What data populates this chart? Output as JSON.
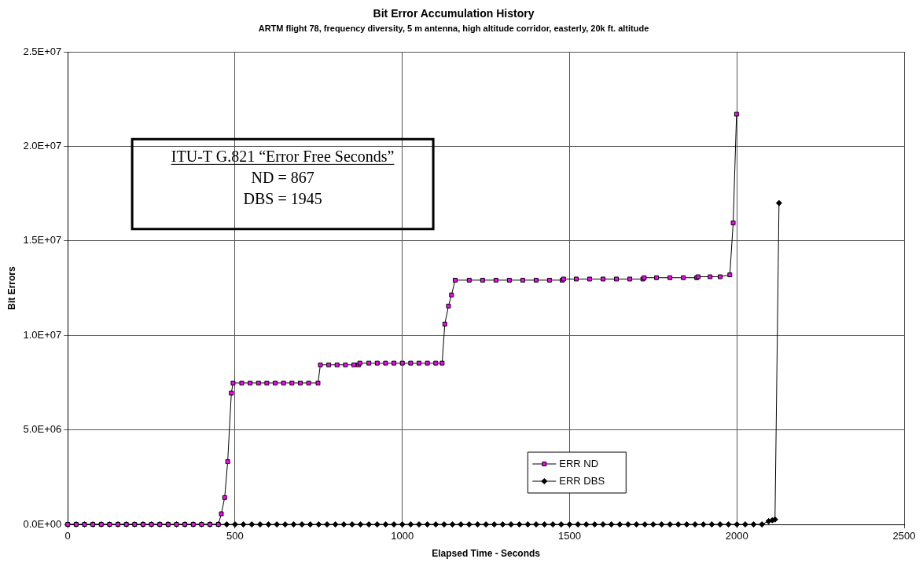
{
  "chart_data": {
    "type": "line",
    "title": "Bit Error Accumulation History",
    "subtitle": "ARTM flight 78, frequency diversity, 5 m antenna, high altitude corridor, easterly, 20k ft. altitude",
    "xlabel": "Elapsed Time - Seconds",
    "ylabel": "Bit Errors",
    "xlim": [
      0,
      2500
    ],
    "xticks": [
      0,
      500,
      1000,
      1500,
      2000,
      2500
    ],
    "ylim": [
      0,
      25000000
    ],
    "yticks": [
      {
        "value": 0,
        "label": "0.0E+00"
      },
      {
        "value": 5000000,
        "label": "5.0E+06"
      },
      {
        "value": 10000000,
        "label": "1.0E+07"
      },
      {
        "value": 15000000,
        "label": "1.5E+07"
      },
      {
        "value": 20000000,
        "label": "2.0E+07"
      },
      {
        "value": 25000000,
        "label": "2.5E+07"
      }
    ],
    "grid": true,
    "legend": "bottom",
    "line_style": "solid",
    "annotations": [
      "ITU-T G.821 “Error Free Seconds”",
      "ND = 867",
      "DBS = 1945"
    ],
    "series": [
      {
        "name": "ERR ND",
        "color": "#ff00ff",
        "marker": "square",
        "x": [
          0,
          25,
          50,
          75,
          100,
          125,
          150,
          175,
          200,
          225,
          250,
          275,
          300,
          325,
          350,
          375,
          400,
          425,
          450,
          459,
          469,
          478,
          489,
          494,
          520,
          545,
          570,
          595,
          620,
          645,
          670,
          695,
          720,
          748,
          755,
          780,
          805,
          830,
          855,
          869,
          873,
          900,
          925,
          950,
          975,
          1000,
          1025,
          1050,
          1075,
          1100,
          1119,
          1127,
          1138,
          1147,
          1158,
          1200,
          1240,
          1280,
          1320,
          1360,
          1400,
          1440,
          1478,
          1482,
          1520,
          1560,
          1600,
          1640,
          1680,
          1719,
          1723,
          1760,
          1800,
          1840,
          1880,
          1884,
          1920,
          1950,
          1979,
          1989,
          1999
        ],
        "values": [
          0,
          0,
          0,
          0,
          0,
          0,
          0,
          0,
          0,
          0,
          0,
          0,
          0,
          0,
          0,
          0,
          0,
          0,
          0,
          560000,
          1420000,
          3320000,
          6950000,
          7480000,
          7480000,
          7480000,
          7480000,
          7480000,
          7480000,
          7480000,
          7480000,
          7480000,
          7480000,
          7480000,
          8440000,
          8440000,
          8440000,
          8440000,
          8440000,
          8440000,
          8530000,
          8530000,
          8530000,
          8530000,
          8530000,
          8530000,
          8530000,
          8530000,
          8530000,
          8530000,
          8530000,
          10600000,
          11550000,
          12140000,
          12920000,
          12920000,
          12920000,
          12920000,
          12920000,
          12920000,
          12920000,
          12920000,
          12920000,
          12980000,
          12980000,
          12980000,
          12980000,
          12980000,
          12980000,
          12980000,
          13050000,
          13050000,
          13050000,
          13050000,
          13050000,
          13100000,
          13100000,
          13100000,
          13200000,
          15950000,
          21700000
        ]
      },
      {
        "name": "ERR DBS",
        "color": "#000000",
        "marker": "diamond",
        "x": [
          0,
          25,
          50,
          75,
          100,
          125,
          150,
          175,
          200,
          225,
          250,
          275,
          300,
          325,
          350,
          375,
          400,
          425,
          450,
          475,
          500,
          525,
          550,
          575,
          600,
          625,
          650,
          675,
          700,
          725,
          750,
          775,
          800,
          825,
          850,
          875,
          900,
          925,
          950,
          975,
          1000,
          1025,
          1050,
          1075,
          1100,
          1125,
          1150,
          1175,
          1200,
          1225,
          1250,
          1275,
          1300,
          1325,
          1350,
          1375,
          1400,
          1425,
          1450,
          1475,
          1500,
          1525,
          1550,
          1575,
          1600,
          1625,
          1650,
          1675,
          1700,
          1725,
          1750,
          1775,
          1800,
          1825,
          1850,
          1875,
          1900,
          1925,
          1950,
          1975,
          2000,
          2025,
          2050,
          2075,
          2095,
          2106,
          2114,
          2126
        ],
        "values": [
          0,
          0,
          0,
          0,
          0,
          0,
          0,
          0,
          0,
          0,
          0,
          0,
          0,
          0,
          0,
          0,
          0,
          0,
          0,
          0,
          0,
          0,
          0,
          0,
          0,
          0,
          0,
          0,
          0,
          0,
          0,
          0,
          0,
          0,
          0,
          0,
          0,
          0,
          0,
          0,
          0,
          0,
          0,
          0,
          0,
          0,
          0,
          0,
          0,
          0,
          0,
          0,
          0,
          0,
          0,
          0,
          0,
          0,
          0,
          0,
          0,
          0,
          0,
          0,
          0,
          0,
          0,
          0,
          0,
          0,
          0,
          0,
          0,
          0,
          0,
          0,
          0,
          0,
          0,
          0,
          0,
          0,
          0,
          0,
          170000,
          220000,
          260000,
          17000000
        ]
      }
    ]
  }
}
